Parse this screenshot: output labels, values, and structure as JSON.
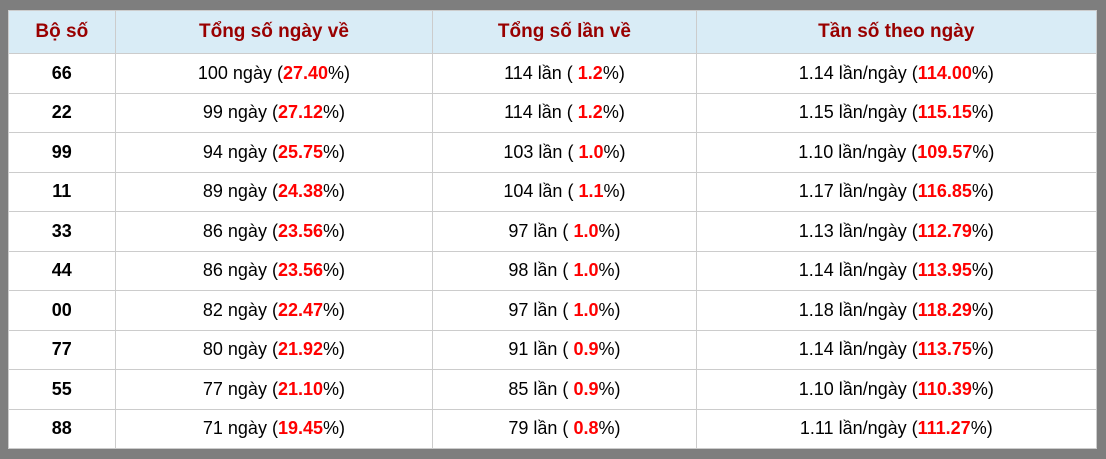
{
  "table": {
    "headers": [
      "Bộ số",
      "Tổng số ngày về",
      "Tổng số lần về",
      "Tần số theo ngày"
    ],
    "rows": [
      {
        "bo_so": "66",
        "ngay_prefix": "100 ngày (",
        "ngay_hl": "27.40",
        "ngay_suffix": "%)",
        "lan_prefix": "114 lần ( ",
        "lan_hl": "1.2",
        "lan_suffix": "%)",
        "tan_prefix": "1.14 lần/ngày (",
        "tan_hl": "114.00",
        "tan_suffix": "%)"
      },
      {
        "bo_so": "22",
        "ngay_prefix": "99 ngày (",
        "ngay_hl": "27.12",
        "ngay_suffix": "%)",
        "lan_prefix": "114 lần ( ",
        "lan_hl": "1.2",
        "lan_suffix": "%)",
        "tan_prefix": "1.15 lần/ngày (",
        "tan_hl": "115.15",
        "tan_suffix": "%)"
      },
      {
        "bo_so": "99",
        "ngay_prefix": "94 ngày (",
        "ngay_hl": "25.75",
        "ngay_suffix": "%)",
        "lan_prefix": "103 lần ( ",
        "lan_hl": "1.0",
        "lan_suffix": "%)",
        "tan_prefix": "1.10 lần/ngày (",
        "tan_hl": "109.57",
        "tan_suffix": "%)"
      },
      {
        "bo_so": "11",
        "ngay_prefix": "89 ngày (",
        "ngay_hl": "24.38",
        "ngay_suffix": "%)",
        "lan_prefix": "104 lần ( ",
        "lan_hl": "1.1",
        "lan_suffix": "%)",
        "tan_prefix": "1.17 lần/ngày (",
        "tan_hl": "116.85",
        "tan_suffix": "%)"
      },
      {
        "bo_so": "33",
        "ngay_prefix": "86 ngày (",
        "ngay_hl": "23.56",
        "ngay_suffix": "%)",
        "lan_prefix": "97 lần ( ",
        "lan_hl": "1.0",
        "lan_suffix": "%)",
        "tan_prefix": "1.13 lần/ngày (",
        "tan_hl": "112.79",
        "tan_suffix": "%)"
      },
      {
        "bo_so": "44",
        "ngay_prefix": "86 ngày (",
        "ngay_hl": "23.56",
        "ngay_suffix": "%)",
        "lan_prefix": "98 lần ( ",
        "lan_hl": "1.0",
        "lan_suffix": "%)",
        "tan_prefix": "1.14 lần/ngày (",
        "tan_hl": "113.95",
        "tan_suffix": "%)"
      },
      {
        "bo_so": "00",
        "ngay_prefix": "82 ngày (",
        "ngay_hl": "22.47",
        "ngay_suffix": "%)",
        "lan_prefix": "97 lần ( ",
        "lan_hl": "1.0",
        "lan_suffix": "%)",
        "tan_prefix": "1.18 lần/ngày (",
        "tan_hl": "118.29",
        "tan_suffix": "%)"
      },
      {
        "bo_so": "77",
        "ngay_prefix": "80 ngày (",
        "ngay_hl": "21.92",
        "ngay_suffix": "%)",
        "lan_prefix": "91 lần ( ",
        "lan_hl": "0.9",
        "lan_suffix": "%)",
        "tan_prefix": "1.14 lần/ngày (",
        "tan_hl": "113.75",
        "tan_suffix": "%)"
      },
      {
        "bo_so": "55",
        "ngay_prefix": "77 ngày (",
        "ngay_hl": "21.10",
        "ngay_suffix": "%)",
        "lan_prefix": "85 lần ( ",
        "lan_hl": "0.9",
        "lan_suffix": "%)",
        "tan_prefix": "1.10 lần/ngày (",
        "tan_hl": "110.39",
        "tan_suffix": "%)"
      },
      {
        "bo_so": "88",
        "ngay_prefix": "71 ngày (",
        "ngay_hl": "19.45",
        "ngay_suffix": "%)",
        "lan_prefix": "79 lần ( ",
        "lan_hl": "0.8",
        "lan_suffix": "%)",
        "tan_prefix": "1.11 lần/ngày (",
        "tan_hl": "111.27",
        "tan_suffix": "%)"
      }
    ],
    "colors": {
      "frame": "#7e7e7e",
      "header_bg": "#d9ecf6",
      "header_text": "#990000",
      "highlight": "#ff0000",
      "grid": "#cccccc"
    }
  }
}
